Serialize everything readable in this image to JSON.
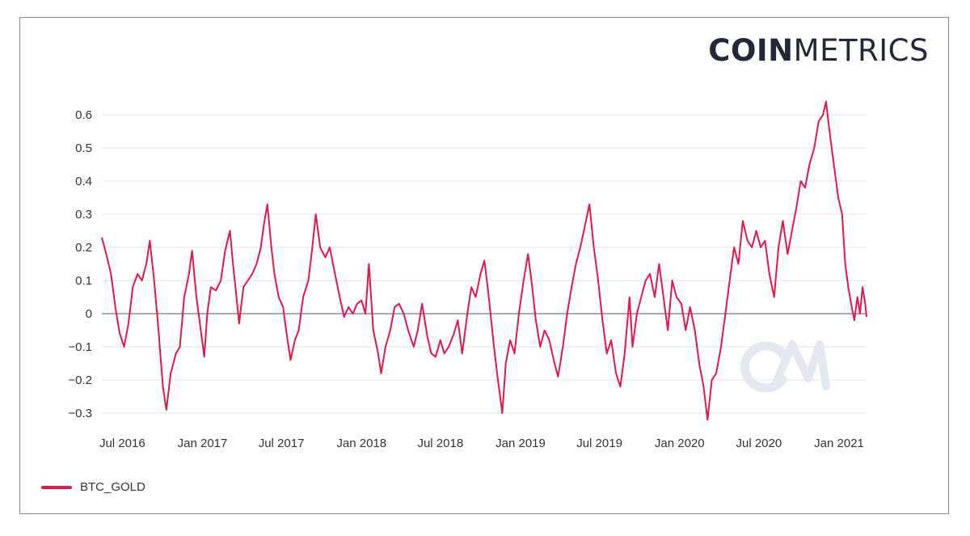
{
  "brand": {
    "logo_bold": "COIN",
    "logo_light": "METRICS",
    "watermark_icon": "cm-watermark-icon"
  },
  "colors": {
    "series": "#e3174a",
    "grid": "#e6e6e6",
    "zero_line": "#555555",
    "text": "#333333",
    "watermark": "#e4e8f0"
  },
  "legend": {
    "items": [
      {
        "name": "BTC_GOLD",
        "color": "#e3174a"
      }
    ]
  },
  "chart_data": {
    "type": "line",
    "title": "",
    "xlabel": "",
    "ylabel": "",
    "x_range": [
      "2016-05-15",
      "2021-03-05"
    ],
    "ylim": [
      -0.33,
      0.66
    ],
    "y_ticks": [
      -0.3,
      -0.2,
      -0.1,
      0,
      0.1,
      0.2,
      0.3,
      0.4,
      0.5,
      0.6
    ],
    "y_tick_labels": [
      "−0.3",
      "−0.2",
      "−0.1",
      "0",
      "0.1",
      "0.2",
      "0.3",
      "0.4",
      "0.5",
      "0.6"
    ],
    "x_ticks": [
      {
        "date": "2016-07-01",
        "label": "Jul 2016"
      },
      {
        "date": "2017-01-01",
        "label": "Jan 2017"
      },
      {
        "date": "2017-07-01",
        "label": "Jul 2017"
      },
      {
        "date": "2018-01-01",
        "label": "Jan 2018"
      },
      {
        "date": "2018-07-01",
        "label": "Jul 2018"
      },
      {
        "date": "2019-01-01",
        "label": "Jan 2019"
      },
      {
        "date": "2019-07-01",
        "label": "Jul 2019"
      },
      {
        "date": "2020-01-01",
        "label": "Jan 2020"
      },
      {
        "date": "2020-07-01",
        "label": "Jul 2020"
      },
      {
        "date": "2021-01-01",
        "label": "Jan 2021"
      }
    ],
    "grid": true,
    "legend_position": "bottom-left",
    "series": [
      {
        "name": "BTC_GOLD",
        "points": [
          [
            "2016-05-15",
            0.23
          ],
          [
            "2016-05-25",
            0.18
          ],
          [
            "2016-06-05",
            0.12
          ],
          [
            "2016-06-15",
            0.02
          ],
          [
            "2016-06-25",
            -0.06
          ],
          [
            "2016-07-05",
            -0.1
          ],
          [
            "2016-07-15",
            -0.03
          ],
          [
            "2016-07-25",
            0.08
          ],
          [
            "2016-08-05",
            0.12
          ],
          [
            "2016-08-15",
            0.1
          ],
          [
            "2016-08-25",
            0.15
          ],
          [
            "2016-09-02",
            0.22
          ],
          [
            "2016-09-12",
            0.1
          ],
          [
            "2016-09-22",
            -0.05
          ],
          [
            "2016-10-02",
            -0.22
          ],
          [
            "2016-10-10",
            -0.29
          ],
          [
            "2016-10-20",
            -0.18
          ],
          [
            "2016-11-01",
            -0.12
          ],
          [
            "2016-11-10",
            -0.1
          ],
          [
            "2016-11-20",
            0.05
          ],
          [
            "2016-12-01",
            0.12
          ],
          [
            "2016-12-08",
            0.19
          ],
          [
            "2016-12-18",
            0.05
          ],
          [
            "2016-12-28",
            -0.05
          ],
          [
            "2017-01-05",
            -0.13
          ],
          [
            "2017-01-12",
            0.0
          ],
          [
            "2017-01-20",
            0.08
          ],
          [
            "2017-02-01",
            0.07
          ],
          [
            "2017-02-12",
            0.1
          ],
          [
            "2017-02-22",
            0.19
          ],
          [
            "2017-03-05",
            0.25
          ],
          [
            "2017-03-12",
            0.15
          ],
          [
            "2017-03-20",
            0.05
          ],
          [
            "2017-03-26",
            -0.03
          ],
          [
            "2017-04-05",
            0.08
          ],
          [
            "2017-04-15",
            0.1
          ],
          [
            "2017-04-25",
            0.12
          ],
          [
            "2017-05-05",
            0.15
          ],
          [
            "2017-05-15",
            0.2
          ],
          [
            "2017-05-22",
            0.27
          ],
          [
            "2017-05-30",
            0.33
          ],
          [
            "2017-06-08",
            0.2
          ],
          [
            "2017-06-15",
            0.12
          ],
          [
            "2017-06-25",
            0.05
          ],
          [
            "2017-07-05",
            0.02
          ],
          [
            "2017-07-12",
            -0.05
          ],
          [
            "2017-07-22",
            -0.14
          ],
          [
            "2017-08-01",
            -0.08
          ],
          [
            "2017-08-10",
            -0.05
          ],
          [
            "2017-08-20",
            0.05
          ],
          [
            "2017-09-01",
            0.1
          ],
          [
            "2017-09-10",
            0.2
          ],
          [
            "2017-09-18",
            0.3
          ],
          [
            "2017-09-28",
            0.2
          ],
          [
            "2017-10-10",
            0.17
          ],
          [
            "2017-10-20",
            0.2
          ],
          [
            "2017-11-01",
            0.12
          ],
          [
            "2017-11-12",
            0.05
          ],
          [
            "2017-11-22",
            -0.01
          ],
          [
            "2017-12-02",
            0.02
          ],
          [
            "2017-12-12",
            0.0
          ],
          [
            "2017-12-22",
            0.03
          ],
          [
            "2018-01-01",
            0.04
          ],
          [
            "2018-01-10",
            0.0
          ],
          [
            "2018-01-18",
            0.15
          ],
          [
            "2018-01-28",
            -0.05
          ],
          [
            "2018-02-08",
            -0.12
          ],
          [
            "2018-02-15",
            -0.18
          ],
          [
            "2018-02-25",
            -0.1
          ],
          [
            "2018-03-08",
            -0.05
          ],
          [
            "2018-03-18",
            0.02
          ],
          [
            "2018-03-28",
            0.03
          ],
          [
            "2018-04-08",
            0.0
          ],
          [
            "2018-04-18",
            -0.05
          ],
          [
            "2018-05-01",
            -0.1
          ],
          [
            "2018-05-10",
            -0.05
          ],
          [
            "2018-05-20",
            0.03
          ],
          [
            "2018-06-01",
            -0.07
          ],
          [
            "2018-06-10",
            -0.12
          ],
          [
            "2018-06-20",
            -0.13
          ],
          [
            "2018-07-01",
            -0.08
          ],
          [
            "2018-07-10",
            -0.12
          ],
          [
            "2018-07-20",
            -0.1
          ],
          [
            "2018-08-01",
            -0.06
          ],
          [
            "2018-08-10",
            -0.02
          ],
          [
            "2018-08-20",
            -0.12
          ],
          [
            "2018-09-01",
            0.0
          ],
          [
            "2018-09-10",
            0.08
          ],
          [
            "2018-09-20",
            0.05
          ],
          [
            "2018-10-01",
            0.12
          ],
          [
            "2018-10-10",
            0.16
          ],
          [
            "2018-10-20",
            0.05
          ],
          [
            "2018-11-01",
            -0.1
          ],
          [
            "2018-11-10",
            -0.2
          ],
          [
            "2018-11-20",
            -0.3
          ],
          [
            "2018-11-28",
            -0.15
          ],
          [
            "2018-12-08",
            -0.08
          ],
          [
            "2018-12-18",
            -0.12
          ],
          [
            "2018-12-28",
            0.0
          ],
          [
            "2019-01-08",
            0.1
          ],
          [
            "2019-01-18",
            0.18
          ],
          [
            "2019-01-26",
            0.1
          ],
          [
            "2019-02-05",
            -0.02
          ],
          [
            "2019-02-15",
            -0.1
          ],
          [
            "2019-02-25",
            -0.05
          ],
          [
            "2019-03-08",
            -0.08
          ],
          [
            "2019-03-18",
            -0.14
          ],
          [
            "2019-03-28",
            -0.19
          ],
          [
            "2019-04-08",
            -0.1
          ],
          [
            "2019-04-18",
            0.0
          ],
          [
            "2019-04-28",
            0.08
          ],
          [
            "2019-05-08",
            0.15
          ],
          [
            "2019-05-18",
            0.2
          ],
          [
            "2019-05-28",
            0.26
          ],
          [
            "2019-06-08",
            0.33
          ],
          [
            "2019-06-18",
            0.2
          ],
          [
            "2019-06-28",
            0.1
          ],
          [
            "2019-07-08",
            -0.02
          ],
          [
            "2019-07-18",
            -0.12
          ],
          [
            "2019-07-28",
            -0.08
          ],
          [
            "2019-08-08",
            -0.18
          ],
          [
            "2019-08-18",
            -0.22
          ],
          [
            "2019-08-28",
            -0.12
          ],
          [
            "2019-09-08",
            0.05
          ],
          [
            "2019-09-15",
            -0.1
          ],
          [
            "2019-09-25",
            0.0
          ],
          [
            "2019-10-05",
            0.05
          ],
          [
            "2019-10-15",
            0.1
          ],
          [
            "2019-10-25",
            0.12
          ],
          [
            "2019-11-05",
            0.05
          ],
          [
            "2019-11-15",
            0.15
          ],
          [
            "2019-11-25",
            0.05
          ],
          [
            "2019-12-05",
            -0.05
          ],
          [
            "2019-12-15",
            0.1
          ],
          [
            "2019-12-25",
            0.05
          ],
          [
            "2020-01-05",
            0.03
          ],
          [
            "2020-01-15",
            -0.05
          ],
          [
            "2020-01-25",
            0.02
          ],
          [
            "2020-02-05",
            -0.05
          ],
          [
            "2020-02-15",
            -0.15
          ],
          [
            "2020-02-25",
            -0.22
          ],
          [
            "2020-03-05",
            -0.32
          ],
          [
            "2020-03-15",
            -0.2
          ],
          [
            "2020-03-25",
            -0.18
          ],
          [
            "2020-04-05",
            -0.1
          ],
          [
            "2020-04-15",
            0.0
          ],
          [
            "2020-04-25",
            0.1
          ],
          [
            "2020-05-05",
            0.2
          ],
          [
            "2020-05-15",
            0.15
          ],
          [
            "2020-05-25",
            0.28
          ],
          [
            "2020-06-05",
            0.22
          ],
          [
            "2020-06-15",
            0.2
          ],
          [
            "2020-06-25",
            0.25
          ],
          [
            "2020-07-05",
            0.2
          ],
          [
            "2020-07-15",
            0.22
          ],
          [
            "2020-07-25",
            0.12
          ],
          [
            "2020-08-05",
            0.05
          ],
          [
            "2020-08-15",
            0.2
          ],
          [
            "2020-08-25",
            0.28
          ],
          [
            "2020-09-05",
            0.18
          ],
          [
            "2020-09-15",
            0.25
          ],
          [
            "2020-09-25",
            0.32
          ],
          [
            "2020-10-05",
            0.4
          ],
          [
            "2020-10-15",
            0.38
          ],
          [
            "2020-10-25",
            0.45
          ],
          [
            "2020-11-05",
            0.5
          ],
          [
            "2020-11-15",
            0.58
          ],
          [
            "2020-11-25",
            0.6
          ],
          [
            "2020-12-02",
            0.64
          ],
          [
            "2020-12-10",
            0.55
          ],
          [
            "2020-12-20",
            0.45
          ],
          [
            "2020-12-30",
            0.35
          ],
          [
            "2021-01-08",
            0.3
          ],
          [
            "2021-01-15",
            0.15
          ],
          [
            "2021-01-22",
            0.08
          ],
          [
            "2021-01-30",
            0.02
          ],
          [
            "2021-02-05",
            -0.02
          ],
          [
            "2021-02-12",
            0.05
          ],
          [
            "2021-02-18",
            0.0
          ],
          [
            "2021-02-24",
            0.08
          ],
          [
            "2021-03-02",
            0.03
          ],
          [
            "2021-03-05",
            -0.01
          ]
        ]
      }
    ]
  }
}
